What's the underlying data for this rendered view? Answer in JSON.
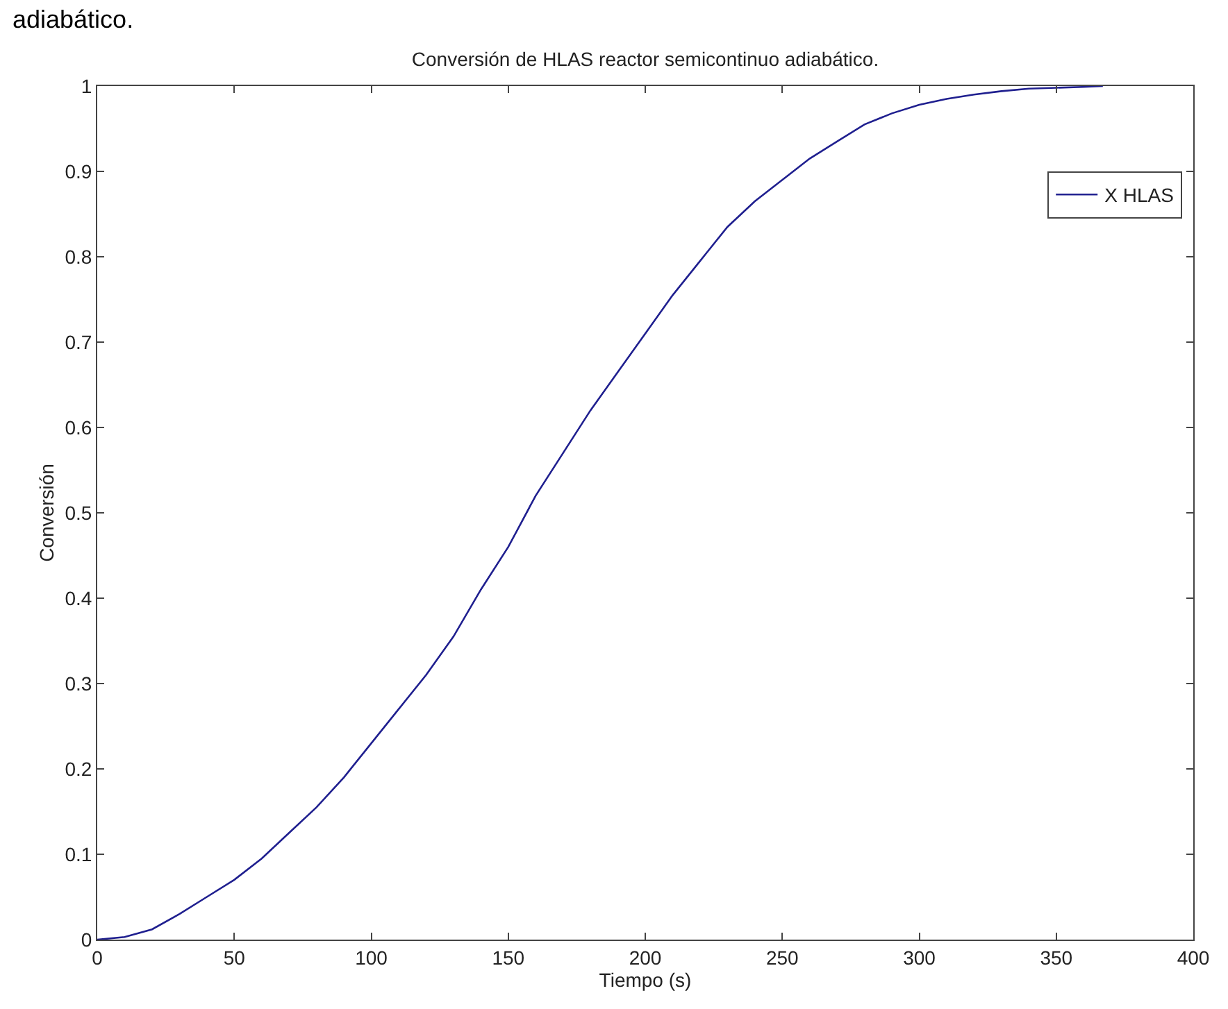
{
  "chart_data": {
    "type": "line",
    "title": "Conversión de HLAS reactor semicontinuo adiabático.",
    "xlabel": "Tiempo (s)",
    "ylabel": "Conversión",
    "annotations": [
      "adiabático."
    ],
    "x": [
      0,
      10,
      20,
      30,
      40,
      50,
      60,
      70,
      80,
      90,
      100,
      110,
      120,
      130,
      140,
      150,
      160,
      170,
      180,
      190,
      200,
      210,
      220,
      230,
      240,
      250,
      260,
      270,
      280,
      290,
      300,
      310,
      320,
      330,
      340,
      350,
      360,
      367
    ],
    "series": [
      {
        "name": "X HLAS",
        "color": "#1f1f8f",
        "values": [
          0,
          0.003,
          0.012,
          0.03,
          0.05,
          0.07,
          0.095,
          0.125,
          0.155,
          0.19,
          0.23,
          0.27,
          0.31,
          0.355,
          0.41,
          0.46,
          0.52,
          0.57,
          0.62,
          0.665,
          0.71,
          0.755,
          0.795,
          0.835,
          0.865,
          0.89,
          0.915,
          0.935,
          0.955,
          0.968,
          0.978,
          0.985,
          0.99,
          0.994,
          0.997,
          0.998,
          0.999,
          1.0
        ]
      }
    ],
    "xlim": [
      0,
      400
    ],
    "xticks": [
      0,
      50,
      100,
      150,
      200,
      250,
      300,
      350,
      400
    ],
    "ylim": [
      0,
      1
    ],
    "yticks": [
      0,
      0.1,
      0.2,
      0.3,
      0.4,
      0.5,
      0.6,
      0.7,
      0.8,
      0.9,
      1
    ],
    "grid": false,
    "legend": "top right",
    "marker": "none",
    "line_style": "solid"
  }
}
